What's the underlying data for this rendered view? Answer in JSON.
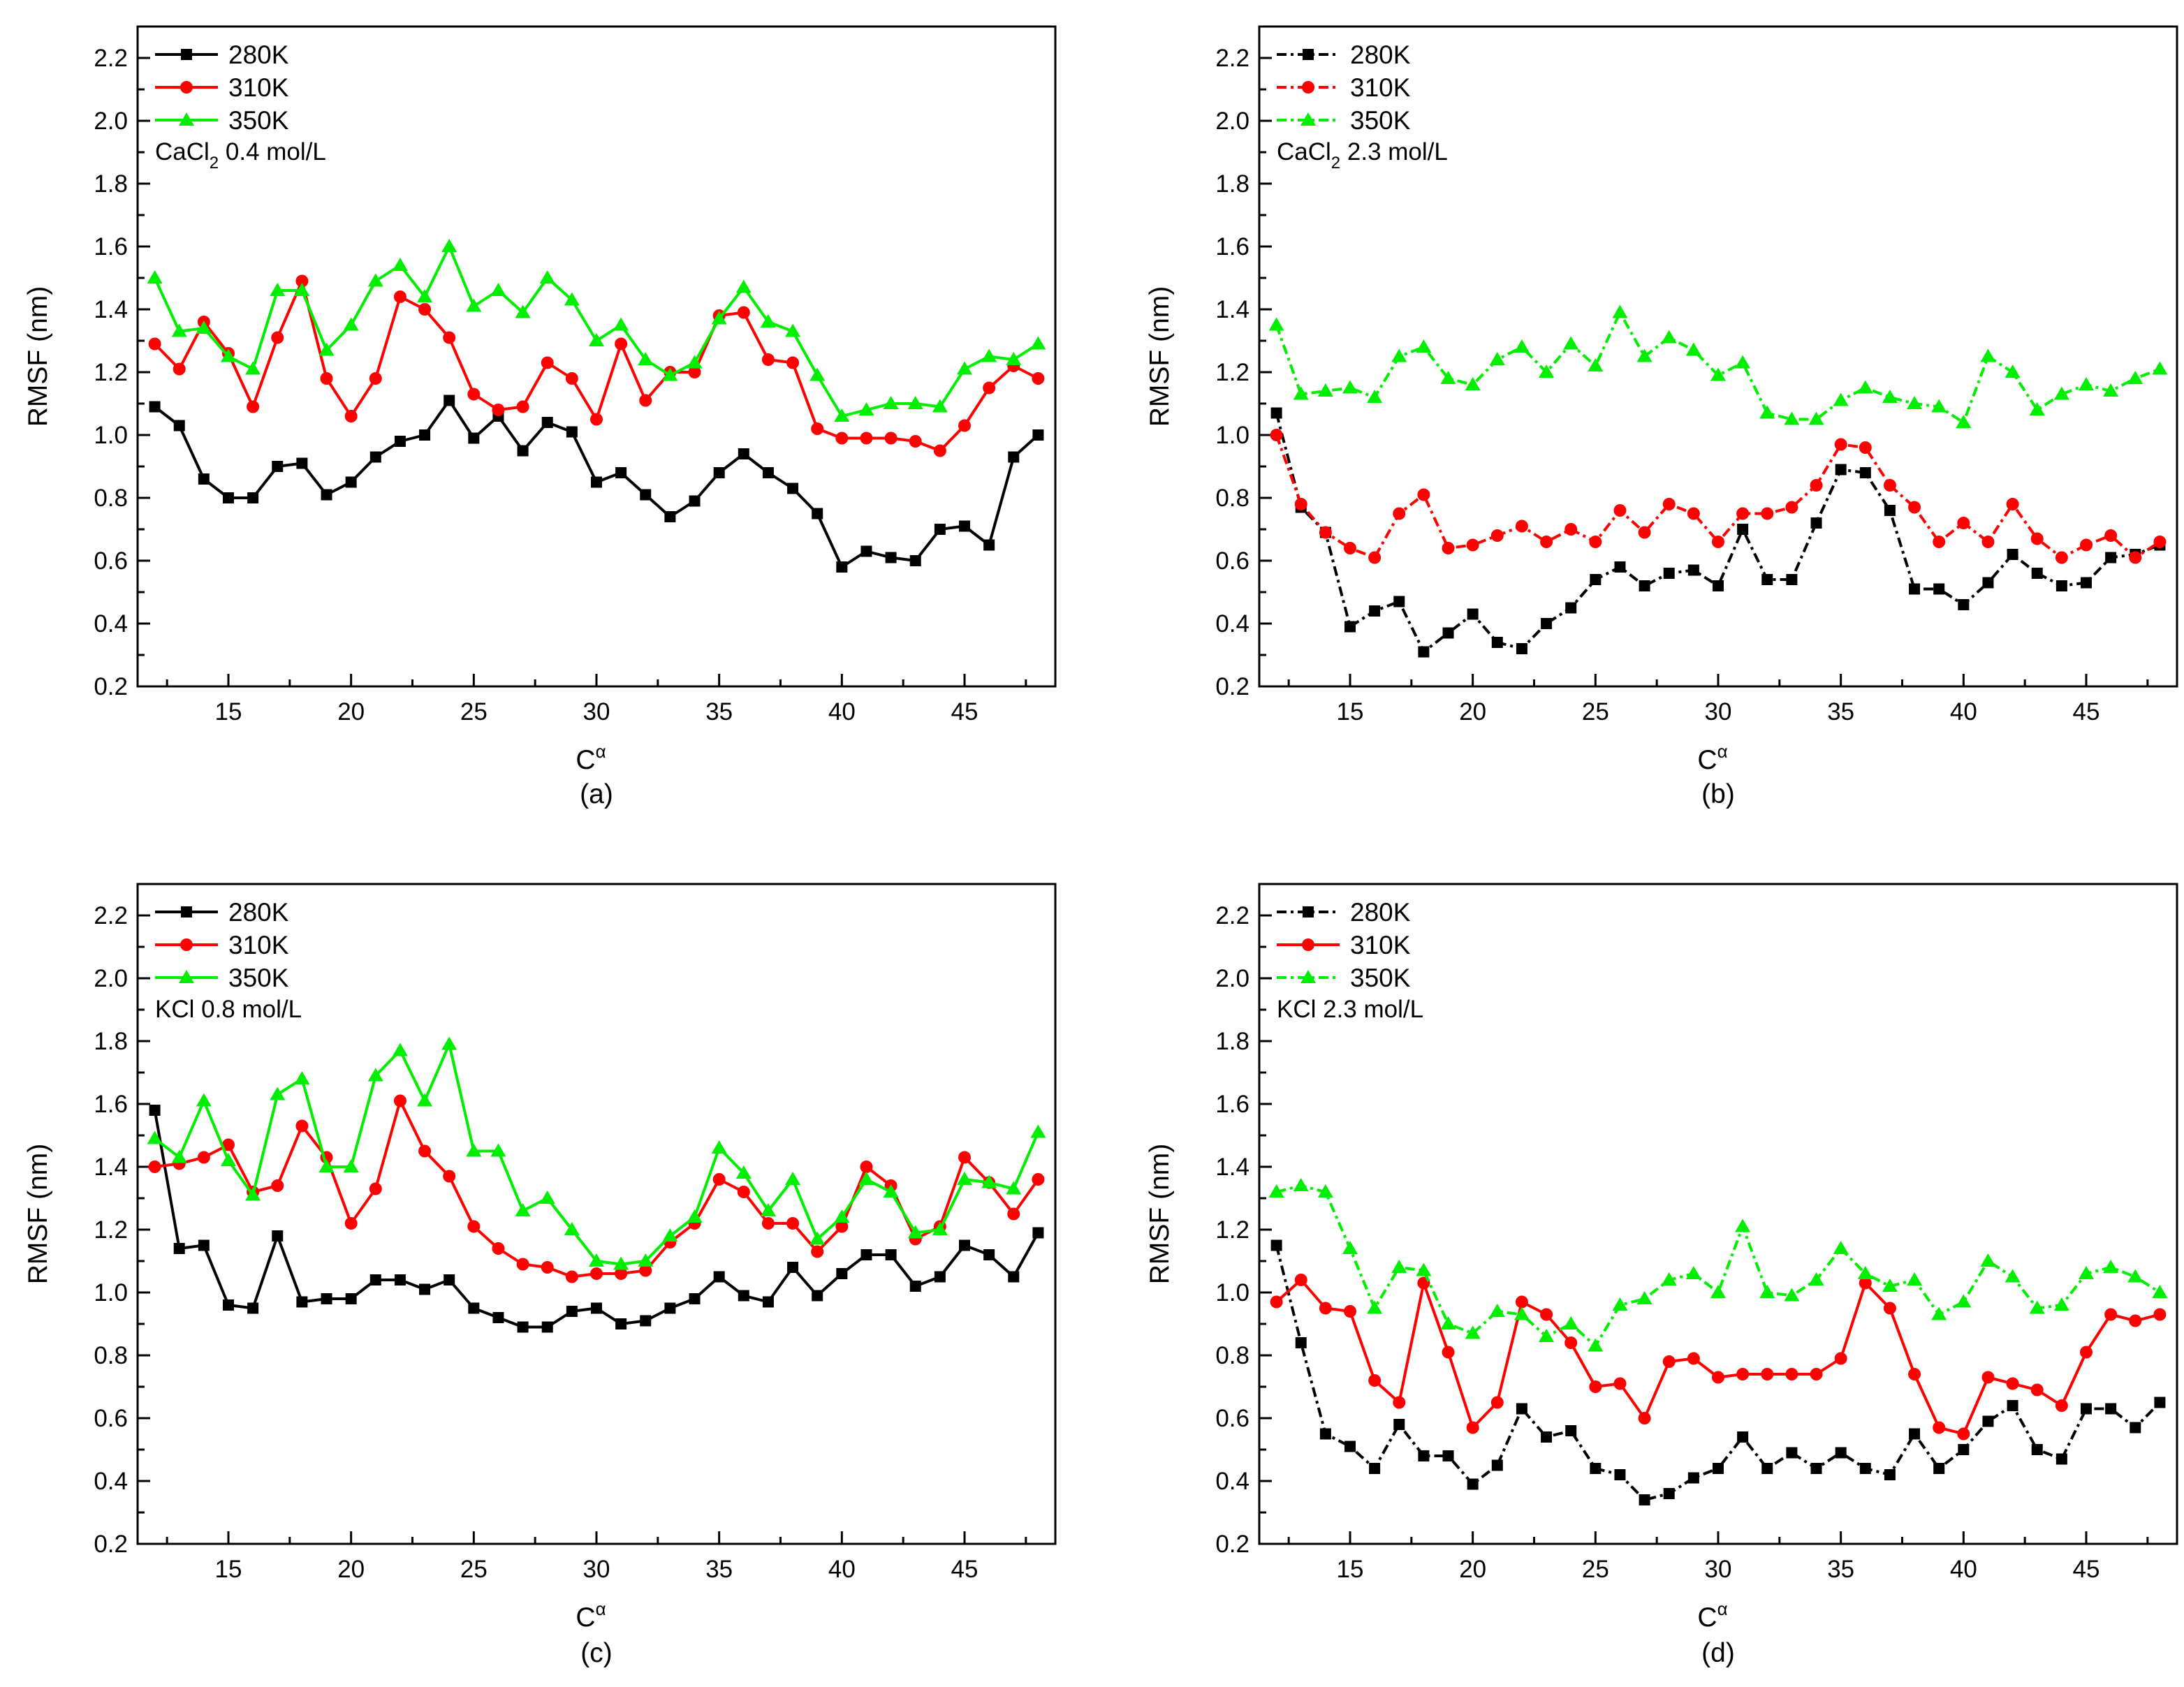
{
  "chart_data": [
    {
      "type": "line",
      "panel_label": "(a)",
      "annotation": {
        "main": "CaCl",
        "sub": "2",
        "rest": " 0.4 mol/L"
      },
      "xlabel": {
        "main": "C",
        "sup": "α"
      },
      "ylabel": "RMSF (nm)",
      "xlim": [
        11.3,
        48.7
      ],
      "ylim": [
        0.2,
        2.3
      ],
      "xticks": [
        15,
        20,
        25,
        30,
        35,
        40,
        45
      ],
      "yticks": [
        0.2,
        0.4,
        0.6,
        0.8,
        1.0,
        1.2,
        1.4,
        1.6,
        1.8,
        2.0,
        2.2
      ],
      "ytick_labels": [
        "0.2",
        "0.4",
        "0.6",
        "0.8",
        "1.0",
        "1.2",
        "1.4",
        "1.6",
        "1.8",
        "2.0",
        "2.2"
      ],
      "legend": "top-left",
      "x": [
        12,
        13,
        14,
        15,
        16,
        17,
        18,
        19,
        20,
        21,
        22,
        23,
        24,
        25,
        26,
        27,
        28,
        29,
        30,
        31,
        32,
        33,
        34,
        35,
        36,
        37,
        38,
        39,
        40,
        41,
        42,
        43,
        44,
        45,
        46,
        47,
        48
      ],
      "series": [
        {
          "name": "280K",
          "color": "#000000",
          "marker": "square",
          "dash": "solid",
          "values": [
            1.09,
            1.03,
            0.86,
            0.8,
            0.8,
            0.9,
            0.91,
            0.81,
            0.85,
            0.93,
            0.98,
            1.0,
            1.11,
            0.99,
            1.06,
            0.95,
            1.04,
            1.01,
            0.85,
            0.88,
            0.81,
            0.74,
            0.79,
            0.88,
            0.94,
            0.88,
            0.83,
            0.75,
            0.58,
            0.63,
            0.61,
            0.6,
            0.7,
            0.71,
            0.65,
            0.93,
            1.0
          ]
        },
        {
          "name": "310K",
          "color": "#ff0000",
          "marker": "circle",
          "dash": "solid",
          "values": [
            1.29,
            1.21,
            1.36,
            1.26,
            1.09,
            1.31,
            1.49,
            1.18,
            1.06,
            1.18,
            1.44,
            1.4,
            1.31,
            1.13,
            1.08,
            1.09,
            1.23,
            1.18,
            1.05,
            1.29,
            1.11,
            1.2,
            1.2,
            1.38,
            1.39,
            1.24,
            1.23,
            1.02,
            0.99,
            0.99,
            0.99,
            0.98,
            0.95,
            1.03,
            1.15,
            1.22,
            1.18
          ]
        },
        {
          "name": "350K",
          "color": "#00ee00",
          "marker": "triangle",
          "dash": "solid",
          "values": [
            1.5,
            1.33,
            1.34,
            1.25,
            1.21,
            1.46,
            1.46,
            1.27,
            1.35,
            1.49,
            1.54,
            1.44,
            1.6,
            1.41,
            1.46,
            1.39,
            1.5,
            1.43,
            1.3,
            1.35,
            1.24,
            1.19,
            1.23,
            1.37,
            1.47,
            1.36,
            1.33,
            1.19,
            1.06,
            1.08,
            1.1,
            1.1,
            1.09,
            1.21,
            1.25,
            1.24,
            1.29
          ]
        }
      ]
    },
    {
      "type": "line",
      "panel_label": "(b)",
      "annotation": {
        "main": "CaCl",
        "sub": "2",
        "rest": " 2.3 mol/L"
      },
      "xlabel": {
        "main": "C",
        "sup": "α"
      },
      "ylabel": "RMSF (nm)",
      "xlim": [
        11.3,
        48.7
      ],
      "ylim": [
        0.2,
        2.3
      ],
      "xticks": [
        15,
        20,
        25,
        30,
        35,
        40,
        45
      ],
      "yticks": [
        0.2,
        0.4,
        0.6,
        0.8,
        1.0,
        1.2,
        1.4,
        1.6,
        1.8,
        2.0,
        2.2
      ],
      "ytick_labels": [
        "0.2",
        "0.4",
        "0.6",
        "0.8",
        "1.0",
        "1.2",
        "1.4",
        "1.6",
        "1.8",
        "2.0",
        "2.2"
      ],
      "legend": "top-left",
      "x": [
        12,
        13,
        14,
        15,
        16,
        17,
        18,
        19,
        20,
        21,
        22,
        23,
        24,
        25,
        26,
        27,
        28,
        29,
        30,
        31,
        32,
        33,
        34,
        35,
        36,
        37,
        38,
        39,
        40,
        41,
        42,
        43,
        44,
        45,
        46,
        47,
        48
      ],
      "series": [
        {
          "name": "280K",
          "color": "#000000",
          "marker": "square",
          "dash": "dashdot",
          "values": [
            1.07,
            0.77,
            0.69,
            0.39,
            0.44,
            0.47,
            0.31,
            0.37,
            0.43,
            0.34,
            0.32,
            0.4,
            0.45,
            0.54,
            0.58,
            0.52,
            0.56,
            0.57,
            0.52,
            0.7,
            0.54,
            0.54,
            0.72,
            0.89,
            0.88,
            0.76,
            0.51,
            0.51,
            0.46,
            0.53,
            0.62,
            0.56,
            0.52,
            0.53,
            0.61,
            0.62,
            0.65
          ]
        },
        {
          "name": "310K",
          "color": "#ff0000",
          "marker": "circle",
          "dash": "dashdot",
          "values": [
            1.0,
            0.78,
            0.69,
            0.64,
            0.61,
            0.75,
            0.81,
            0.64,
            0.65,
            0.68,
            0.71,
            0.66,
            0.7,
            0.66,
            0.76,
            0.69,
            0.78,
            0.75,
            0.66,
            0.75,
            0.75,
            0.77,
            0.84,
            0.97,
            0.96,
            0.84,
            0.77,
            0.66,
            0.72,
            0.66,
            0.78,
            0.67,
            0.61,
            0.65,
            0.68,
            0.61,
            0.66
          ]
        },
        {
          "name": "350K",
          "color": "#00ee00",
          "marker": "triangle",
          "dash": "dashdot",
          "values": [
            1.35,
            1.13,
            1.14,
            1.15,
            1.12,
            1.25,
            1.28,
            1.18,
            1.16,
            1.24,
            1.28,
            1.2,
            1.29,
            1.22,
            1.39,
            1.25,
            1.31,
            1.27,
            1.19,
            1.23,
            1.07,
            1.05,
            1.05,
            1.11,
            1.15,
            1.12,
            1.1,
            1.09,
            1.04,
            1.25,
            1.2,
            1.08,
            1.13,
            1.16,
            1.14,
            1.18,
            1.21
          ]
        }
      ]
    },
    {
      "type": "line",
      "panel_label": "(c)",
      "annotation": {
        "main": "KCl 0.8 mol/L",
        "sub": "",
        "rest": ""
      },
      "xlabel": {
        "main": "C",
        "sup": "α"
      },
      "ylabel": "RMSF (nm)",
      "xlim": [
        11.3,
        48.7
      ],
      "ylim": [
        0.2,
        2.3
      ],
      "xticks": [
        15,
        20,
        25,
        30,
        35,
        40,
        45
      ],
      "yticks": [
        0.2,
        0.4,
        0.6,
        0.8,
        1.0,
        1.2,
        1.4,
        1.6,
        1.8,
        2.0,
        2.2
      ],
      "ytick_labels": [
        "0.2",
        "0.4",
        "0.6",
        "0.8",
        "1.0",
        "1.2",
        "1.4",
        "1.6",
        "1.8",
        "2.0",
        "2.2"
      ],
      "legend": "top-left",
      "x": [
        12,
        13,
        14,
        15,
        16,
        17,
        18,
        19,
        20,
        21,
        22,
        23,
        24,
        25,
        26,
        27,
        28,
        29,
        30,
        31,
        32,
        33,
        34,
        35,
        36,
        37,
        38,
        39,
        40,
        41,
        42,
        43,
        44,
        45,
        46,
        47,
        48
      ],
      "series": [
        {
          "name": "280K",
          "color": "#000000",
          "marker": "square",
          "dash": "solid",
          "values": [
            1.58,
            1.14,
            1.15,
            0.96,
            0.95,
            1.18,
            0.97,
            0.98,
            0.98,
            1.04,
            1.04,
            1.01,
            1.04,
            0.95,
            0.92,
            0.89,
            0.89,
            0.94,
            0.95,
            0.9,
            0.91,
            0.95,
            0.98,
            1.05,
            0.99,
            0.97,
            1.08,
            0.99,
            1.06,
            1.12,
            1.12,
            1.02,
            1.05,
            1.15,
            1.12,
            1.05,
            1.19
          ]
        },
        {
          "name": "310K",
          "color": "#ff0000",
          "marker": "circle",
          "dash": "solid",
          "values": [
            1.4,
            1.41,
            1.43,
            1.47,
            1.32,
            1.34,
            1.53,
            1.43,
            1.22,
            1.33,
            1.61,
            1.45,
            1.37,
            1.21,
            1.14,
            1.09,
            1.08,
            1.05,
            1.06,
            1.06,
            1.07,
            1.16,
            1.22,
            1.36,
            1.32,
            1.22,
            1.22,
            1.13,
            1.21,
            1.4,
            1.34,
            1.17,
            1.21,
            1.43,
            1.35,
            1.25,
            1.36
          ]
        },
        {
          "name": "350K",
          "color": "#00ee00",
          "marker": "triangle",
          "dash": "solid",
          "values": [
            1.49,
            1.43,
            1.61,
            1.42,
            1.31,
            1.63,
            1.68,
            1.4,
            1.4,
            1.69,
            1.77,
            1.61,
            1.79,
            1.45,
            1.45,
            1.26,
            1.3,
            1.2,
            1.1,
            1.09,
            1.1,
            1.18,
            1.24,
            1.46,
            1.38,
            1.26,
            1.36,
            1.17,
            1.24,
            1.36,
            1.32,
            1.19,
            1.2,
            1.36,
            1.35,
            1.33,
            1.51
          ]
        }
      ]
    },
    {
      "type": "line",
      "panel_label": "(d)",
      "annotation": {
        "main": "KCl 2.3 mol/L",
        "sub": "",
        "rest": ""
      },
      "xlabel": {
        "main": "C",
        "sup": "α"
      },
      "ylabel": "RMSF (nm)",
      "xlim": [
        11.3,
        48.7
      ],
      "ylim": [
        0.2,
        2.3
      ],
      "xticks": [
        15,
        20,
        25,
        30,
        35,
        40,
        45
      ],
      "yticks": [
        0.2,
        0.4,
        0.6,
        0.8,
        1.0,
        1.2,
        1.4,
        1.6,
        1.8,
        2.0,
        2.2
      ],
      "ytick_labels": [
        "0.2",
        "0.4",
        "0.6",
        "0.8",
        "1.0",
        "1.2",
        "1.4",
        "1.6",
        "1.8",
        "2.0",
        "2.2"
      ],
      "legend": "top-left",
      "x": [
        12,
        13,
        14,
        15,
        16,
        17,
        18,
        19,
        20,
        21,
        22,
        23,
        24,
        25,
        26,
        27,
        28,
        29,
        30,
        31,
        32,
        33,
        34,
        35,
        36,
        37,
        38,
        39,
        40,
        41,
        42,
        43,
        44,
        45,
        46,
        47,
        48
      ],
      "series": [
        {
          "name": "280K",
          "color": "#000000",
          "marker": "square",
          "dash": "dashdot",
          "values": [
            1.15,
            0.84,
            0.55,
            0.51,
            0.44,
            0.58,
            0.48,
            0.48,
            0.39,
            0.45,
            0.63,
            0.54,
            0.56,
            0.44,
            0.42,
            0.34,
            0.36,
            0.41,
            0.44,
            0.54,
            0.44,
            0.49,
            0.44,
            0.49,
            0.44,
            0.42,
            0.55,
            0.44,
            0.5,
            0.59,
            0.64,
            0.5,
            0.47,
            0.63,
            0.63,
            0.57,
            0.65
          ]
        },
        {
          "name": "310K",
          "color": "#ff0000",
          "marker": "circle",
          "dash": "solid",
          "values": [
            0.97,
            1.04,
            0.95,
            0.94,
            0.72,
            0.65,
            1.03,
            0.81,
            0.57,
            0.65,
            0.97,
            0.93,
            0.84,
            0.7,
            0.71,
            0.6,
            0.78,
            0.79,
            0.73,
            0.74,
            0.74,
            0.74,
            0.74,
            0.79,
            1.03,
            0.95,
            0.74,
            0.57,
            0.55,
            0.73,
            0.71,
            0.69,
            0.64,
            0.81,
            0.93,
            0.91,
            0.93
          ]
        },
        {
          "name": "350K",
          "color": "#00ee00",
          "marker": "triangle",
          "dash": "dashdot",
          "values": [
            1.32,
            1.34,
            1.32,
            1.14,
            0.95,
            1.08,
            1.07,
            0.9,
            0.87,
            0.94,
            0.93,
            0.86,
            0.9,
            0.83,
            0.96,
            0.98,
            1.04,
            1.06,
            1.0,
            1.21,
            1.0,
            0.99,
            1.04,
            1.14,
            1.06,
            1.02,
            1.04,
            0.93,
            0.97,
            1.1,
            1.05,
            0.95,
            0.96,
            1.06,
            1.08,
            1.05,
            1.0
          ]
        }
      ]
    }
  ]
}
